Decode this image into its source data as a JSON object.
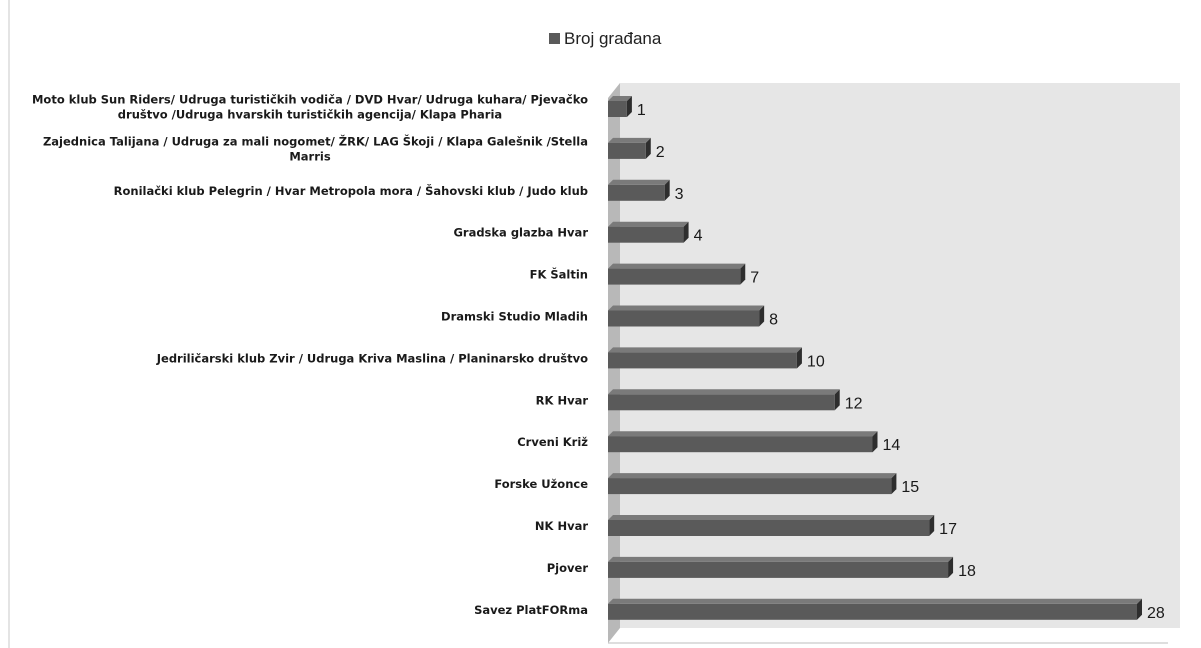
{
  "chart_data": {
    "type": "bar",
    "orientation": "horizontal",
    "three_d": true,
    "legend_position": "top",
    "grid": false,
    "series": [
      {
        "name": "Broj građana",
        "color": "#5a5a5a"
      }
    ],
    "categories": [
      [
        "Moto klub Sun Riders/ Udruga turističkih vodiča / DVD Hvar/ Udruga kuhara/ Pjevačko",
        "društvo /Udruga hvarskih turističkih agencija/  Klapa Pharia"
      ],
      [
        "Zajednica Talijana  / Udruga za mali nogomet/ ŽRK/ LAG Škoji / Klapa Galešnik /Stella",
        "Marris"
      ],
      [
        "Ronilački klub Pelegrin / Hvar Metropola mora / Šahovski klub / Judo klub"
      ],
      [
        "Gradska glazba  Hvar"
      ],
      [
        "FK Šaltin"
      ],
      [
        "Dramski Studio Mladih"
      ],
      [
        "Jedriličarski klub Zvir / Udruga Kriva Maslina  / Planinarsko  društvo"
      ],
      [
        "RK Hvar"
      ],
      [
        "Crveni Križ"
      ],
      [
        "Forske Užonce"
      ],
      [
        "NK Hvar"
      ],
      [
        "Pjover"
      ],
      [
        "Savez PlatFORma"
      ]
    ],
    "values": [
      1,
      2,
      3,
      4,
      7,
      8,
      10,
      12,
      14,
      15,
      17,
      18,
      28
    ],
    "xlim": [
      0,
      30
    ]
  }
}
